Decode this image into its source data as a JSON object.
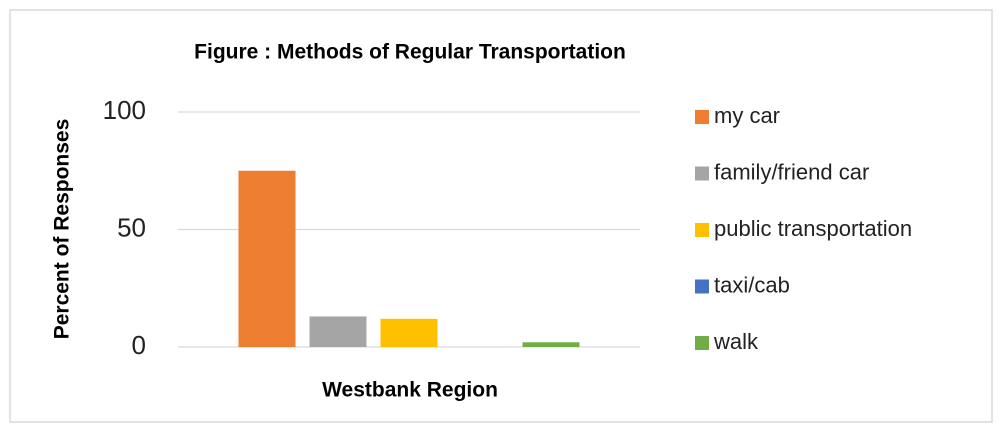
{
  "chart_data": {
    "type": "bar",
    "title": "Figure : Methods of Regular Transportation",
    "x_label": "Westbank Region",
    "y_label": "Percent of Responses",
    "categories": [
      null
    ],
    "series": [
      {
        "name": "my car",
        "color": "#ed7d31",
        "values": [
          75
        ]
      },
      {
        "name": "family/friend car",
        "color": "#a5a5a5",
        "values": [
          13
        ]
      },
      {
        "name": "public transportation",
        "color": "#ffc000",
        "values": [
          12
        ]
      },
      {
        "name": "taxi/cab",
        "color": "#4472c4",
        "values": [
          0
        ]
      },
      {
        "name": "walk",
        "color": "#70ad47",
        "values": [
          2
        ]
      }
    ],
    "ylim": [
      0,
      100
    ],
    "yticks": [
      0,
      50,
      100
    ],
    "grid": true,
    "legend": "right"
  }
}
